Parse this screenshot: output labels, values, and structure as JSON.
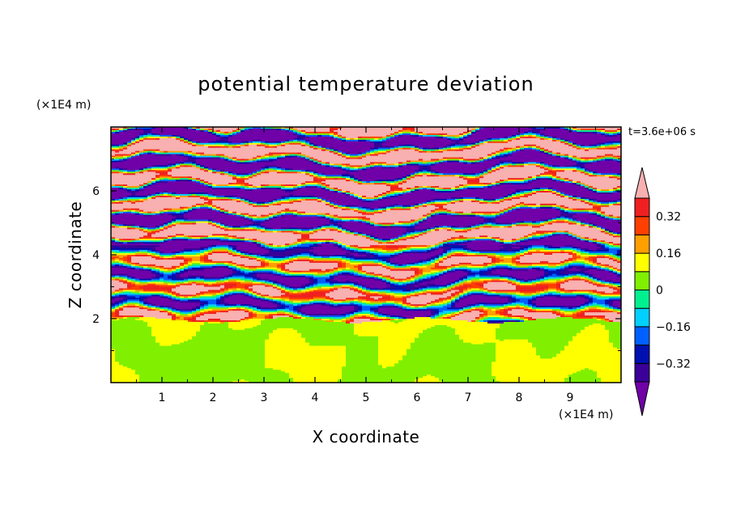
{
  "chart_data": {
    "type": "heatmap",
    "title": "potential temperature deviation",
    "xlabel": "X coordinate",
    "ylabel": "Z coordinate",
    "x_units": "(×1E4 m)",
    "y_units": "(×1E4 m)",
    "time_label": "t=3.6e+06 s",
    "xlim": [
      0,
      10
    ],
    "ylim": [
      0,
      8
    ],
    "x_ticks": [
      "1",
      "2",
      "3",
      "4",
      "5",
      "6",
      "7",
      "8",
      "9"
    ],
    "y_ticks": [
      "2",
      "4",
      "6"
    ],
    "colorbar": {
      "levels": [
        -0.4,
        -0.32,
        -0.24,
        -0.16,
        -0.08,
        0,
        0.08,
        0.16,
        0.24,
        0.32,
        0.4
      ],
      "labels": [
        "0.32",
        "0.16",
        "0",
        "−0.16",
        "−0.32"
      ],
      "label_values": [
        0.32,
        0.16,
        0,
        -0.16,
        -0.32
      ],
      "colors": [
        "#7000a8",
        "#3a0098",
        "#0010b0",
        "#0060ff",
        "#00d0ff",
        "#00f090",
        "#80f000",
        "#ffff00",
        "#ffa000",
        "#ff4000",
        "#f02020",
        "#f8b0b0"
      ],
      "extend": "both"
    },
    "description_layers": {
      "lower_layer_z": [
        0,
        2
      ],
      "lower_layer_values": [
        0,
        0.08
      ],
      "upper_layer_z": [
        2,
        8
      ],
      "upper_layer_extremes": [
        -0.4,
        0.4
      ]
    }
  }
}
